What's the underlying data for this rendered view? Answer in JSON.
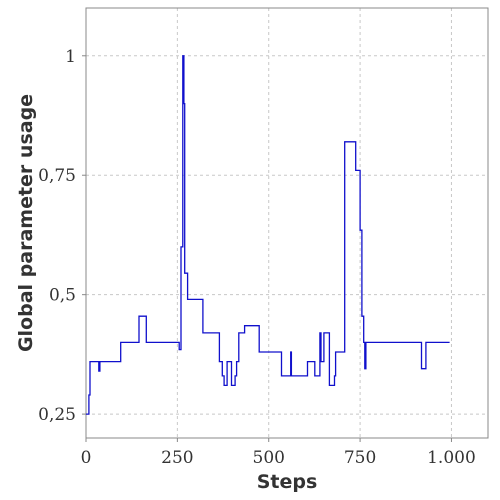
{
  "chart_data": {
    "type": "line",
    "title": "",
    "xlabel": "Steps",
    "ylabel": "Global parameter usage",
    "xlim": [
      0,
      1100
    ],
    "ylim": [
      0.2,
      1.1
    ],
    "grid": true,
    "x_ticks": [
      0,
      250,
      500,
      750,
      1000
    ],
    "x_tick_labels": [
      "0",
      "250",
      "500",
      "750",
      "1.000"
    ],
    "y_ticks": [
      0.25,
      0.5,
      0.75,
      1
    ],
    "y_tick_labels": [
      "0,25",
      "0,5",
      "0,75",
      "1"
    ],
    "series": [
      {
        "color": "#1010cc",
        "x": [
          0,
          8,
          8,
          11,
          11,
          16,
          16,
          35,
          35,
          38,
          38,
          95,
          95,
          145,
          145,
          165,
          165,
          255,
          255,
          260,
          260,
          265,
          265,
          268,
          268,
          270,
          270,
          278,
          278,
          320,
          320,
          365,
          365,
          373,
          373,
          378,
          378,
          386,
          386,
          398,
          398,
          408,
          408,
          412,
          412,
          418,
          418,
          425,
          425,
          434,
          434,
          440,
          440,
          444,
          444,
          474,
          474,
          535,
          535,
          560,
          560,
          562,
          562,
          596,
          596,
          606,
          606,
          612,
          612,
          626,
          626,
          640,
          640,
          643,
          643,
          651,
          651,
          660,
          660,
          666,
          666,
          680,
          680,
          683,
          683,
          708,
          708,
          738,
          738,
          750,
          750,
          755,
          755,
          760,
          760,
          763,
          763,
          766,
          766,
          918,
          918,
          930,
          930,
          960,
          960,
          962,
          962,
          988,
          988,
          990,
          990,
          995
        ],
        "y": [
          0.25,
          0.25,
          0.29,
          0.29,
          0.36,
          0.36,
          0.36,
          0.36,
          0.34,
          0.34,
          0.36,
          0.36,
          0.4,
          0.4,
          0.455,
          0.455,
          0.4,
          0.4,
          0.385,
          0.385,
          0.6,
          0.6,
          1.0,
          1.0,
          0.9,
          0.9,
          0.545,
          0.545,
          0.49,
          0.49,
          0.42,
          0.42,
          0.36,
          0.36,
          0.33,
          0.33,
          0.31,
          0.31,
          0.36,
          0.36,
          0.31,
          0.31,
          0.33,
          0.33,
          0.36,
          0.36,
          0.42,
          0.42,
          0.42,
          0.42,
          0.435,
          0.435,
          0.435,
          0.435,
          0.435,
          0.435,
          0.38,
          0.38,
          0.33,
          0.33,
          0.38,
          0.38,
          0.33,
          0.33,
          0.33,
          0.33,
          0.36,
          0.36,
          0.36,
          0.36,
          0.33,
          0.33,
          0.42,
          0.42,
          0.36,
          0.36,
          0.42,
          0.42,
          0.42,
          0.42,
          0.31,
          0.31,
          0.33,
          0.33,
          0.38,
          0.38,
          0.82,
          0.82,
          0.76,
          0.76,
          0.635,
          0.635,
          0.455,
          0.455,
          0.4,
          0.4,
          0.345,
          0.345,
          0.4,
          0.4,
          0.345,
          0.345,
          0.4,
          0.4,
          0.4,
          0.4,
          0.4,
          0.4,
          0.4,
          0.4,
          0.4,
          0.4
        ]
      }
    ]
  }
}
